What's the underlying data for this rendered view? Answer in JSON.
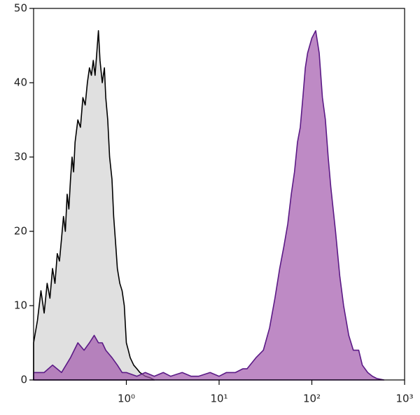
{
  "chart_data": {
    "type": "area",
    "xscale": "log",
    "xlim": [
      0.1,
      1000
    ],
    "ylim": [
      0,
      50
    ],
    "xticks": [
      {
        "value": 1,
        "label": "10⁰"
      },
      {
        "value": 10,
        "label": "10¹"
      },
      {
        "value": 100,
        "label": "10²"
      },
      {
        "value": 1000,
        "label": "10³"
      }
    ],
    "yticks": [
      0,
      10,
      20,
      30,
      40,
      50
    ],
    "series": [
      {
        "color": "#000000",
        "fill": "#e0e0e0",
        "fill_opacity": 1,
        "x": [
          0.1,
          0.11,
          0.12,
          0.13,
          0.14,
          0.15,
          0.16,
          0.17,
          0.18,
          0.19,
          0.2,
          0.21,
          0.22,
          0.23,
          0.24,
          0.25,
          0.26,
          0.27,
          0.28,
          0.3,
          0.32,
          0.34,
          0.36,
          0.38,
          0.4,
          0.42,
          0.44,
          0.46,
          0.48,
          0.5,
          0.52,
          0.55,
          0.58,
          0.6,
          0.63,
          0.66,
          0.7,
          0.73,
          0.77,
          0.8,
          0.85,
          0.9,
          0.95,
          1.0,
          1.05,
          1.1,
          1.2,
          1.3,
          1.4,
          1.6,
          1.8,
          2
        ],
        "values": [
          5,
          8,
          12,
          9,
          13,
          11,
          15,
          13,
          17,
          16,
          19,
          22,
          20,
          25,
          23,
          27,
          30,
          28,
          32,
          35,
          34,
          38,
          37,
          40,
          42,
          41,
          43,
          41,
          44,
          47,
          43,
          40,
          42,
          38,
          35,
          30,
          27,
          22,
          18,
          15,
          13,
          12,
          10,
          5,
          4,
          3,
          2,
          1.5,
          1,
          0.5,
          0.3,
          0
        ]
      },
      {
        "color": "#5b1a86",
        "fill": "#a259ad",
        "fill_opacity": 0.7,
        "x": [
          0.1,
          0.13,
          0.16,
          0.2,
          0.25,
          0.3,
          0.35,
          0.4,
          0.45,
          0.5,
          0.55,
          0.6,
          0.7,
          0.8,
          0.9,
          1.0,
          1.3,
          1.6,
          2,
          2.5,
          3,
          4,
          5,
          6,
          8,
          10,
          12,
          15,
          18,
          20,
          25,
          30,
          35,
          40,
          45,
          50,
          55,
          60,
          65,
          70,
          75,
          80,
          85,
          90,
          100,
          110,
          120,
          130,
          140,
          150,
          160,
          180,
          200,
          220,
          250,
          280,
          320,
          350,
          400,
          450,
          500,
          600
        ],
        "values": [
          1,
          1,
          2,
          1,
          3,
          5,
          4,
          5,
          6,
          5,
          5,
          4,
          3,
          2,
          1,
          1,
          0.5,
          1,
          0.5,
          1,
          0.5,
          1,
          0.5,
          0.5,
          1,
          0.5,
          1,
          1,
          1.5,
          1.5,
          3,
          4,
          7,
          11,
          15,
          18,
          21,
          25,
          28,
          32,
          34,
          38,
          42,
          44,
          46,
          47,
          44,
          38,
          35,
          30,
          26,
          20,
          14,
          10,
          6,
          4,
          4,
          2,
          1,
          0.5,
          0.2,
          0
        ]
      }
    ]
  }
}
